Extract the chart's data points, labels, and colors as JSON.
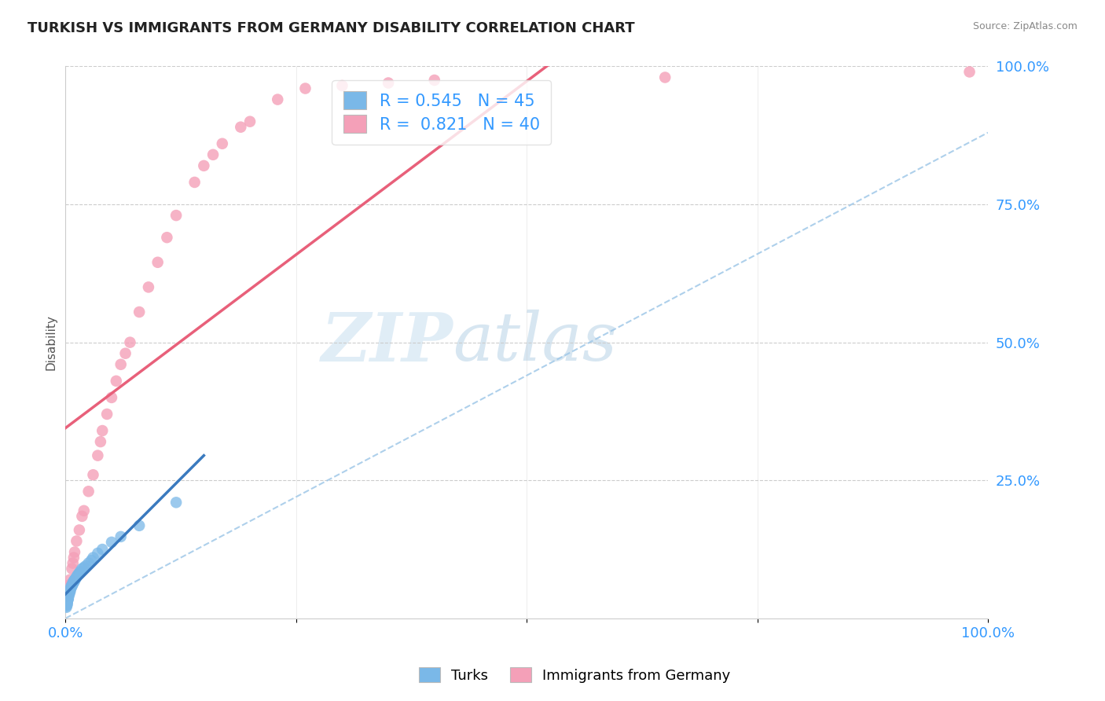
{
  "title": "TURKISH VS IMMIGRANTS FROM GERMANY DISABILITY CORRELATION CHART",
  "source": "Source: ZipAtlas.com",
  "xlabel": "",
  "ylabel": "Disability",
  "watermark_zip": "ZIP",
  "watermark_atlas": "atlas",
  "xlim": [
    0,
    1
  ],
  "ylim": [
    0,
    1
  ],
  "ytick_labels_right": [
    "25.0%",
    "50.0%",
    "75.0%",
    "100.0%"
  ],
  "ytick_vals_right": [
    0.25,
    0.5,
    0.75,
    1.0
  ],
  "blue_R": 0.545,
  "blue_N": 45,
  "pink_R": 0.821,
  "pink_N": 40,
  "blue_scatter_color": "#7ab8e8",
  "pink_scatter_color": "#f4a0b8",
  "blue_line_color": "#3a7abf",
  "pink_line_color": "#e8607a",
  "dashed_line_color": "#a0c8e8",
  "legend_blue_label": "Turks",
  "legend_pink_label": "Immigrants from Germany",
  "blue_x": [
    0.001,
    0.001,
    0.001,
    0.002,
    0.002,
    0.002,
    0.002,
    0.003,
    0.003,
    0.003,
    0.003,
    0.004,
    0.004,
    0.004,
    0.005,
    0.005,
    0.005,
    0.006,
    0.006,
    0.007,
    0.007,
    0.008,
    0.008,
    0.009,
    0.009,
    0.01,
    0.01,
    0.011,
    0.012,
    0.013,
    0.014,
    0.015,
    0.016,
    0.018,
    0.02,
    0.022,
    0.025,
    0.028,
    0.03,
    0.035,
    0.04,
    0.05,
    0.06,
    0.08,
    0.12
  ],
  "blue_y": [
    0.02,
    0.022,
    0.025,
    0.025,
    0.028,
    0.03,
    0.032,
    0.035,
    0.035,
    0.038,
    0.04,
    0.042,
    0.045,
    0.048,
    0.048,
    0.05,
    0.052,
    0.055,
    0.058,
    0.058,
    0.06,
    0.062,
    0.065,
    0.065,
    0.068,
    0.068,
    0.07,
    0.072,
    0.075,
    0.078,
    0.08,
    0.082,
    0.085,
    0.09,
    0.092,
    0.095,
    0.1,
    0.105,
    0.11,
    0.118,
    0.125,
    0.138,
    0.148,
    0.168,
    0.21
  ],
  "pink_x": [
    0.002,
    0.004,
    0.005,
    0.007,
    0.008,
    0.009,
    0.01,
    0.012,
    0.015,
    0.018,
    0.02,
    0.025,
    0.03,
    0.035,
    0.038,
    0.04,
    0.045,
    0.05,
    0.055,
    0.06,
    0.065,
    0.07,
    0.08,
    0.09,
    0.1,
    0.11,
    0.12,
    0.14,
    0.15,
    0.16,
    0.17,
    0.19,
    0.2,
    0.23,
    0.26,
    0.3,
    0.35,
    0.4,
    0.65,
    0.98
  ],
  "pink_y": [
    0.04,
    0.06,
    0.07,
    0.09,
    0.1,
    0.11,
    0.12,
    0.14,
    0.16,
    0.185,
    0.195,
    0.23,
    0.26,
    0.295,
    0.32,
    0.34,
    0.37,
    0.4,
    0.43,
    0.46,
    0.48,
    0.5,
    0.555,
    0.6,
    0.645,
    0.69,
    0.73,
    0.79,
    0.82,
    0.84,
    0.86,
    0.89,
    0.9,
    0.94,
    0.96,
    0.965,
    0.97,
    0.975,
    0.98,
    0.99
  ],
  "grid_color": "#cccccc",
  "background_color": "#ffffff",
  "title_fontsize": 13,
  "tick_label_color": "#3399ff"
}
